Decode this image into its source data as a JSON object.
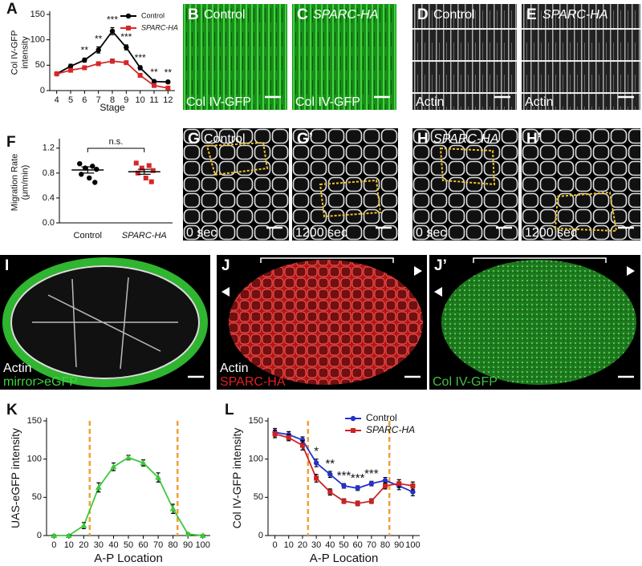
{
  "chart_data": [
    {
      "type": "line",
      "panel": "A",
      "ylabel": [
        "Col IV-GFP",
        "intensity"
      ],
      "xlabel": "Stage",
      "x": [
        4,
        5,
        6,
        7,
        8,
        9,
        10,
        11,
        12
      ],
      "xlim": [
        3.5,
        12.5
      ],
      "xticks": [
        4,
        5,
        6,
        7,
        8,
        9,
        10,
        11,
        12
      ],
      "ylim": [
        0,
        150
      ],
      "yticks": [
        0,
        50,
        100,
        150
      ],
      "series": [
        {
          "name": "Control",
          "color": "#000000",
          "marker": "circle",
          "values": [
            33,
            48,
            60,
            80,
            117,
            85,
            45,
            18,
            17
          ],
          "errors": [
            3,
            4,
            4,
            6,
            7,
            5,
            4,
            3,
            3
          ]
        },
        {
          "name": "SPARC-HA",
          "color": "#d62728",
          "marker": "square",
          "values": [
            33,
            40,
            45,
            53,
            58,
            55,
            30,
            10,
            5
          ],
          "errors": [
            3,
            3,
            3,
            3,
            4,
            3,
            3,
            2,
            2
          ]
        }
      ],
      "annotations": [
        {
          "x": 6,
          "text": "**"
        },
        {
          "x": 7,
          "text": "**"
        },
        {
          "x": 8,
          "text": "***"
        },
        {
          "x": 9,
          "text": "***"
        },
        {
          "x": 10,
          "text": "***"
        },
        {
          "x": 11,
          "text": "**"
        },
        {
          "x": 12,
          "text": "**"
        }
      ]
    },
    {
      "type": "dot",
      "panel": "F",
      "ylabel": [
        "Migration Rate",
        "(μm/min)"
      ],
      "categories": [
        "Control",
        "SPARC-HA"
      ],
      "colors": [
        "#000000",
        "#d62728"
      ],
      "points": [
        [
          0.95,
          0.91,
          0.88,
          0.86,
          0.78,
          0.72,
          0.65
        ],
        [
          0.96,
          0.92,
          0.88,
          0.84,
          0.8,
          0.72,
          0.66
        ]
      ],
      "means": [
        0.85,
        0.82
      ],
      "errors": [
        0.05,
        0.04
      ],
      "ylim": [
        0,
        1.3
      ],
      "yticks": [
        {
          "value": 0,
          "label": "0.0"
        },
        0.4,
        0.8,
        1.2
      ],
      "annotation": "n.s."
    },
    {
      "type": "line",
      "panel": "K",
      "ylabel": [
        "UAS-eGFP intensity"
      ],
      "xlabel": "A-P Location",
      "x": [
        0,
        10,
        20,
        30,
        40,
        50,
        60,
        70,
        80,
        90,
        100
      ],
      "xlim": [
        -5,
        105
      ],
      "xticks": [
        0,
        10,
        20,
        30,
        40,
        50,
        60,
        70,
        80,
        90,
        100
      ],
      "ylim": [
        0,
        150
      ],
      "yticks": [
        0,
        50,
        100,
        150
      ],
      "reference_lines": [
        24,
        83
      ],
      "reference_color": "#f0a030",
      "series": [
        {
          "color": "#3cc83c",
          "marker": "triangle",
          "values": [
            0,
            0,
            13,
            63,
            90,
            102,
            95,
            76,
            35,
            2,
            0
          ],
          "errors": [
            1,
            1,
            4,
            6,
            5,
            3,
            4,
            6,
            6,
            1,
            1
          ]
        }
      ]
    },
    {
      "type": "line",
      "panel": "L",
      "ylabel": [
        "Col IV-GFP intensity"
      ],
      "xlabel": "A-P Location",
      "x": [
        0,
        10,
        20,
        30,
        40,
        50,
        60,
        70,
        80,
        90,
        100
      ],
      "xlim": [
        -5,
        105
      ],
      "xticks": [
        0,
        10,
        20,
        30,
        40,
        50,
        60,
        70,
        80,
        90,
        100
      ],
      "ylim": [
        0,
        150
      ],
      "yticks": [
        0,
        50,
        100,
        150
      ],
      "reference_lines": [
        24,
        83
      ],
      "reference_color": "#f0a030",
      "series": [
        {
          "name": "Control",
          "color": "#2233cc",
          "marker": "circle",
          "values": [
            135,
            132,
            125,
            95,
            80,
            65,
            62,
            68,
            72,
            65,
            57
          ],
          "errors": [
            5,
            4,
            4,
            5,
            4,
            3,
            3,
            3,
            4,
            5,
            5
          ]
        },
        {
          "name": "SPARC-HA",
          "color": "#cc2222",
          "marker": "square",
          "values": [
            133,
            128,
            118,
            75,
            57,
            45,
            42,
            45,
            65,
            68,
            65
          ],
          "errors": [
            5,
            4,
            6,
            5,
            4,
            3,
            3,
            3,
            4,
            5,
            5
          ]
        }
      ],
      "annotations": [
        {
          "x": 30,
          "text": "*"
        },
        {
          "x": 40,
          "text": "**"
        },
        {
          "x": 50,
          "text": "***"
        },
        {
          "x": 60,
          "text": "***"
        },
        {
          "x": 70,
          "text": "***"
        }
      ]
    }
  ],
  "images": [
    {
      "panel": "B",
      "labels": [
        "Control",
        "Col IV-GFP"
      ]
    },
    {
      "panel": "C",
      "labels": [
        "SPARC-HA",
        "Col IV-GFP"
      ]
    },
    {
      "panel": "D",
      "labels": [
        "Control",
        "Actin"
      ]
    },
    {
      "panel": "E",
      "labels": [
        "SPARC-HA",
        "Actin"
      ]
    },
    {
      "panel": "G",
      "labels": [
        "Control",
        "0 sec"
      ]
    },
    {
      "panel": "G’",
      "labels": [
        "1200 sec"
      ]
    },
    {
      "panel": "H",
      "labels": [
        "SPARC-HA",
        "0 sec"
      ]
    },
    {
      "panel": "H’",
      "labels": [
        "1200 sec"
      ]
    },
    {
      "panel": "I",
      "labels": [
        "Actin",
        "mirror>eGFP"
      ]
    },
    {
      "panel": "J",
      "labels": [
        "Actin",
        "SPARC-HA"
      ]
    },
    {
      "panel": "J’",
      "labels": [
        "Col IV-GFP"
      ]
    }
  ]
}
